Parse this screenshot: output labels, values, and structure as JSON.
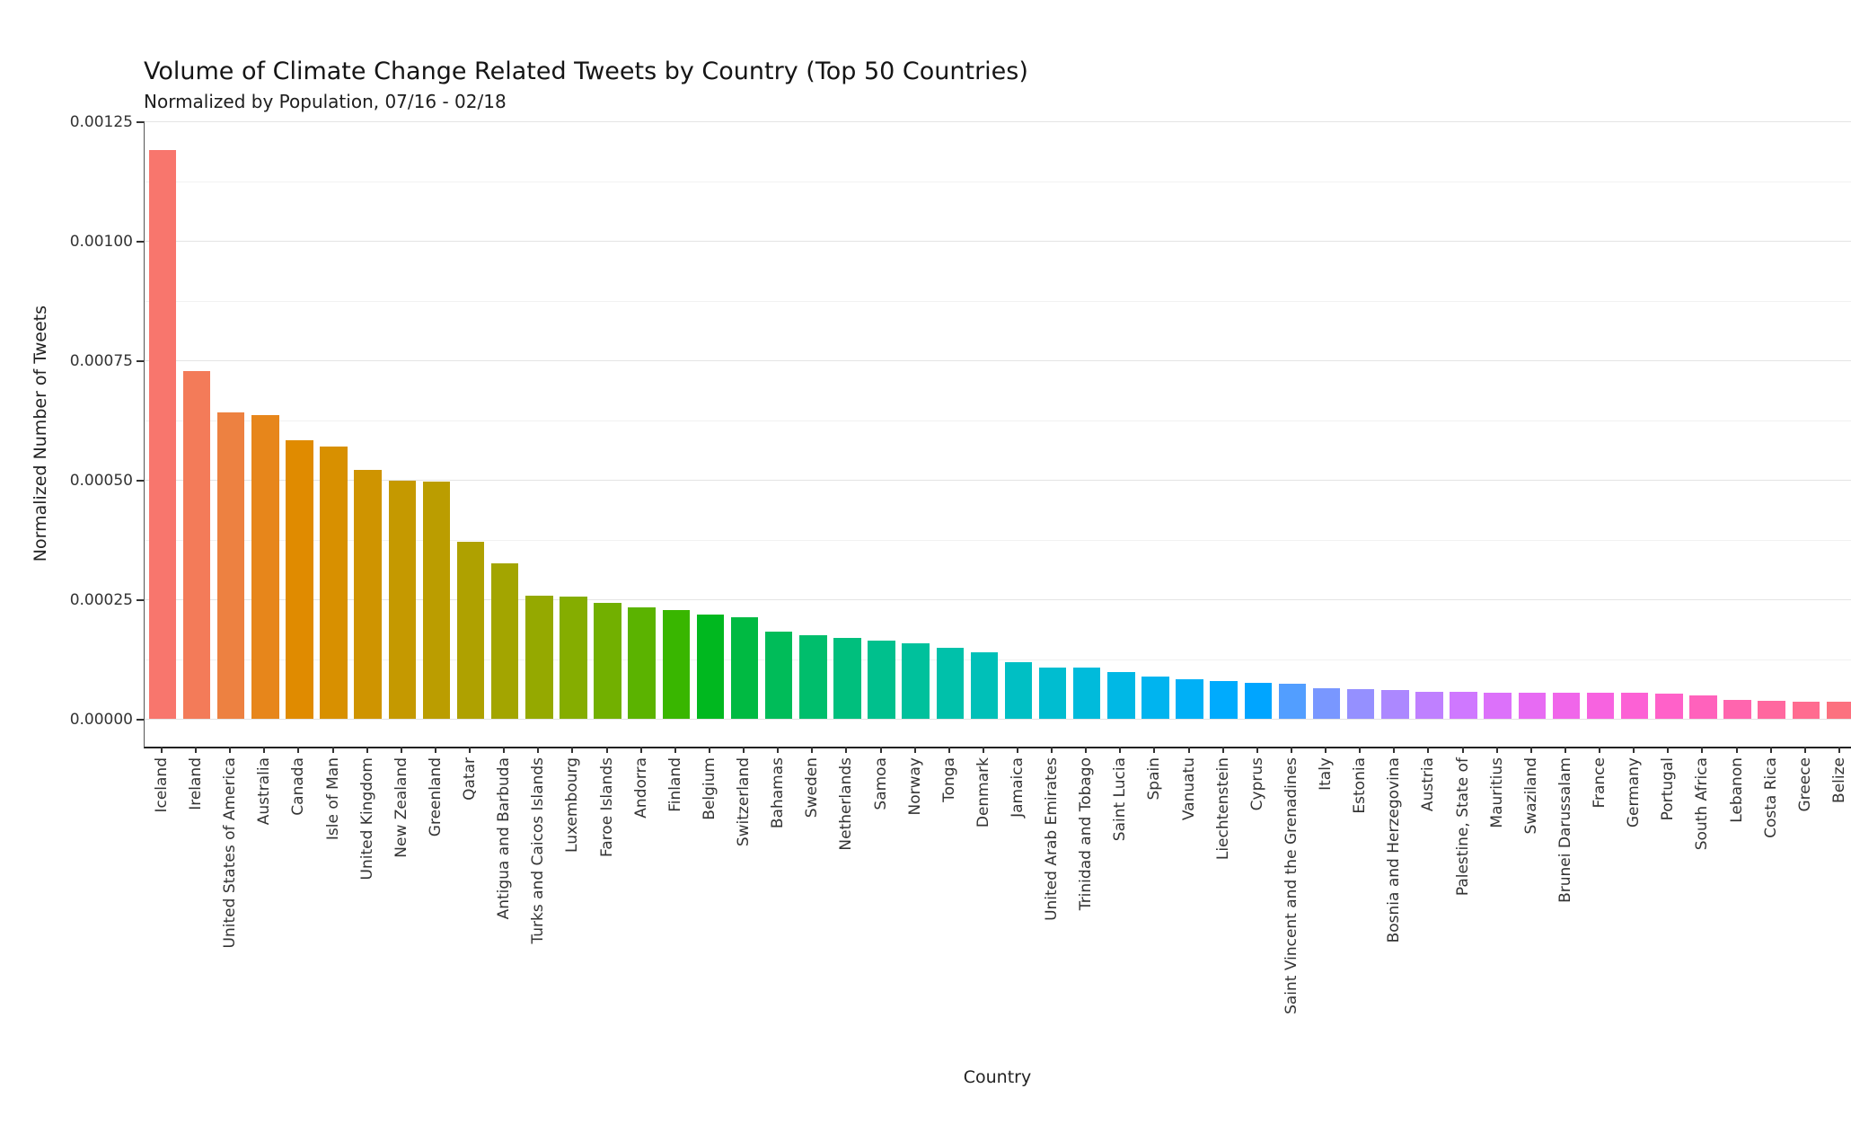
{
  "chart_data": {
    "type": "bar",
    "title": "Volume of Climate Change Related Tweets by Country (Top 50 Countries)",
    "subtitle": "Normalized by Population, 07/16 - 02/18",
    "xlabel": "Country",
    "ylabel": "Normalized Number of Tweets",
    "ylim": [
      0,
      0.00125
    ],
    "ytick_step": 0.00025,
    "ytick_labels": [
      "0.00000",
      "0.00025",
      "0.00050",
      "0.00075",
      "0.00100",
      "0.00125"
    ],
    "grid": "horizontal major + minor, light grey, white background",
    "legend": "none",
    "palette": {
      "model": "hcl-rainbow (ggplot hue palette, C=100, L=65)",
      "hue_start_deg": 15,
      "hue_step_deg": 7.2,
      "first_bar_hex": "#f8766d"
    },
    "categories": [
      "Iceland",
      "Ireland",
      "United States of America",
      "Australia",
      "Canada",
      "Isle of Man",
      "United Kingdom",
      "New Zealand",
      "Greenland",
      "Qatar",
      "Antigua and Barbuda",
      "Turks and Caicos Islands",
      "Luxembourg",
      "Faroe Islands",
      "Andorra",
      "Finland",
      "Belgium",
      "Switzerland",
      "Bahamas",
      "Sweden",
      "Netherlands",
      "Samoa",
      "Norway",
      "Tonga",
      "Denmark",
      "Jamaica",
      "United Arab Emirates",
      "Trinidad and Tobago",
      "Saint Lucia",
      "Spain",
      "Vanuatu",
      "Liechtenstein",
      "Cyprus",
      "Saint Vincent and the Grenadines",
      "Italy",
      "Estonia",
      "Bosnia and Herzegovina",
      "Austria",
      "Palestine, State of",
      "Mauritius",
      "Swaziland",
      "Brunei Darussalam",
      "France",
      "Germany",
      "Portugal",
      "South Africa",
      "Lebanon",
      "Costa Rica",
      "Greece",
      "Belize"
    ],
    "values": [
      0.00119,
      0.000727,
      0.000641,
      0.000636,
      0.000583,
      0.00057,
      0.00052,
      0.000499,
      0.000496,
      0.000371,
      0.000326,
      0.000258,
      0.000255,
      0.000243,
      0.000234,
      0.000227,
      0.000218,
      0.000212,
      0.000182,
      0.000175,
      0.00017,
      0.000163,
      0.000157,
      0.000149,
      0.00014,
      0.000119,
      0.000108,
      0.000107,
      9.7e-05,
      8.9e-05,
      8.3e-05,
      7.9e-05,
      7.6e-05,
      7.4e-05,
      6.4e-05,
      6.2e-05,
      6.1e-05,
      5.65e-05,
      5.55e-05,
      5.5e-05,
      5.48e-05,
      5.45e-05,
      5.4e-05,
      5.38e-05,
      5.35e-05,
      4.8e-05,
      3.9e-05,
      3.75e-05,
      3.65e-05,
      3.6e-05
    ]
  }
}
